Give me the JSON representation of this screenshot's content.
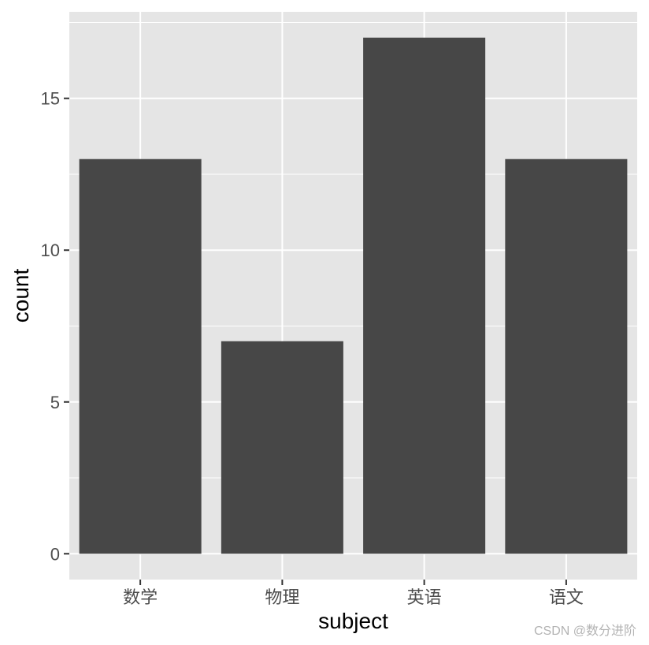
{
  "chart_data": {
    "type": "bar",
    "categories": [
      "数学",
      "物理",
      "英语",
      "语文"
    ],
    "values": [
      13,
      7,
      17,
      13
    ],
    "xlabel": "subject",
    "ylabel": "count",
    "ylim": [
      -0.85,
      17.85
    ],
    "yticks": [
      0,
      5,
      10,
      15
    ],
    "grid": true,
    "colors": {
      "panel_background": "#e5e5e5",
      "grid_line": "#ffffff",
      "bar_fill": "#474747",
      "tick_text": "#4d4d4d"
    }
  },
  "watermark": "CSDN @数分进阶"
}
